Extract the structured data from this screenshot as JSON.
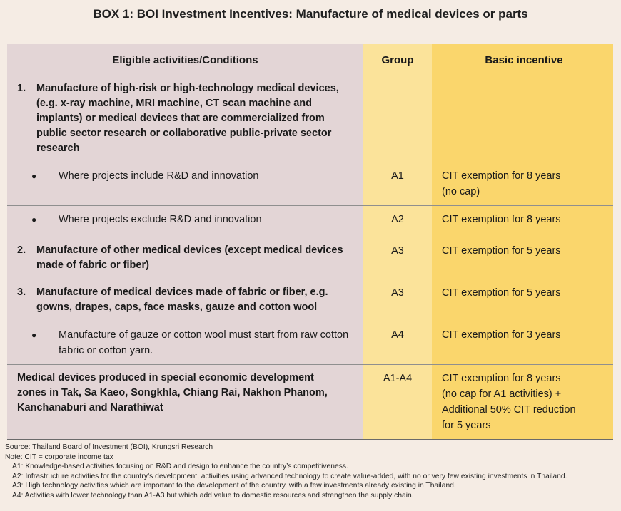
{
  "title": "BOX 1: BOI Investment Incentives: Manufacture of medical devices or parts",
  "headers": {
    "activities": "Eligible activities/Conditions",
    "group": "Group",
    "incentive": "Basic incentive"
  },
  "rows": [
    {
      "num": "1.",
      "activity": "Manufacture of high-risk or high-technology medical devices, (e.g. x-ray machine, MRI machine, CT scan machine and implants) or medical devices that are commercialized from public sector research or collaborative public-private sector research",
      "group": "",
      "incentive_lines": [
        ""
      ]
    },
    {
      "bullet": "●",
      "activity": "Where projects include R&D and innovation",
      "group": "A1",
      "incentive_lines": [
        "CIT exemption for 8 years",
        "(no cap)"
      ]
    },
    {
      "bullet": "●",
      "activity": "Where projects exclude R&D and innovation",
      "group": "A2",
      "incentive_lines": [
        "CIT exemption for 8 years"
      ]
    },
    {
      "num": "2.",
      "activity": "Manufacture of other medical devices (except medical devices made of fabric or fiber)",
      "group": "A3",
      "incentive_lines": [
        "CIT exemption for 5 years"
      ]
    },
    {
      "num": "3.",
      "activity": "Manufacture of medical devices made of fabric or fiber, e.g. gowns, drapes, caps, face masks, gauze and cotton wool",
      "group": "A3",
      "incentive_lines": [
        "CIT exemption for 5 years"
      ]
    },
    {
      "bullet": "●",
      "activity": "Manufacture of gauze or cotton wool must start from raw cotton fabric or cotton yarn.",
      "group": "A4",
      "incentive_lines": [
        "CIT exemption for 3 years"
      ]
    },
    {
      "activity_lines": [
        "Medical devices produced in special economic development",
        "zones in Tak, Sa Kaeo, Songkhla, Chiang Rai, Nakhon Phanom,",
        "Kanchanaburi  and Narathiwat"
      ],
      "group": "A1-A4",
      "incentive_lines": [
        "CIT exemption for 8 years",
        "(no cap for A1 activities) +",
        "Additional 50% CIT reduction",
        "for 5 years"
      ]
    }
  ],
  "notes": {
    "source": "Source: Thailand Board of Investment (BOI), Krungsri Research",
    "note": "Note: CIT = corporate income tax",
    "a1": "A1: Knowledge-based activities focusing on R&D and design to enhance the country’s competitiveness.",
    "a2": "A2: Infrastructure activities for the country’s development, activities using advanced technology to create value-added, with no or very few existing investments in Thailand.",
    "a3": "A3: High technology activities which are important to the development of the country, with a few investments already existing in Thailand.",
    "a4": "A4: Activities with lower technology than A1-A3 but which add value to domestic resources and strengthen the supply chain."
  },
  "colors": {
    "background": "#f5ece4",
    "activity_column": "#e3d5d6",
    "group_column": "#fbe39a",
    "incentive_column": "#fad66c"
  }
}
